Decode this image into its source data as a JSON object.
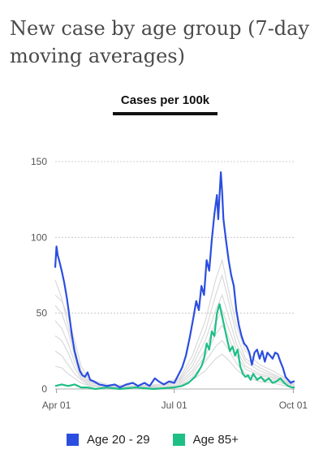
{
  "title": "New case by age group (7-day moving averages)",
  "tab": {
    "label": "Cases per 100k"
  },
  "colors": {
    "age_20_29": "#2b4ee0",
    "age_85_plus": "#1dbf85",
    "background_series": "#d6d6d6",
    "grid": "#bdbdbd"
  },
  "legend": [
    {
      "label": "Age 20 - 29",
      "color": "#2b4ee0"
    },
    {
      "label": "Age 85+",
      "color": "#1dbf85"
    }
  ],
  "chart_data": {
    "type": "line",
    "title": "New case by age group (7-day moving averages)",
    "xlabel": "",
    "ylabel": "Cases per 100k",
    "ylim": [
      0,
      150
    ],
    "yticks": [
      0,
      50,
      100,
      150
    ],
    "xlim": [
      "2020-03-31",
      "2020-10-02"
    ],
    "xticks": [
      {
        "date": "2020-04-01",
        "label": "Apr 01"
      },
      {
        "date": "2020-07-01",
        "label": "Jul 01"
      },
      {
        "date": "2020-10-01",
        "label": "Oct 01"
      }
    ],
    "grid": true,
    "legend_position": "bottom",
    "series": [
      {
        "name": "Age 20 - 29",
        "color": "#2b4ee0",
        "points": [
          [
            "2020-03-31",
            80
          ],
          [
            "2020-04-01",
            94
          ],
          [
            "2020-04-02",
            88
          ],
          [
            "2020-04-03",
            85
          ],
          [
            "2020-04-05",
            78
          ],
          [
            "2020-04-07",
            70
          ],
          [
            "2020-04-09",
            60
          ],
          [
            "2020-04-11",
            48
          ],
          [
            "2020-04-13",
            35
          ],
          [
            "2020-04-15",
            25
          ],
          [
            "2020-04-17",
            18
          ],
          [
            "2020-04-19",
            12
          ],
          [
            "2020-04-21",
            9
          ],
          [
            "2020-04-23",
            8
          ],
          [
            "2020-04-25",
            11
          ],
          [
            "2020-04-27",
            6
          ],
          [
            "2020-04-30",
            5
          ],
          [
            "2020-05-04",
            3
          ],
          [
            "2020-05-10",
            2
          ],
          [
            "2020-05-16",
            3
          ],
          [
            "2020-05-20",
            1
          ],
          [
            "2020-05-25",
            3
          ],
          [
            "2020-05-30",
            4
          ],
          [
            "2020-06-03",
            2
          ],
          [
            "2020-06-08",
            4
          ],
          [
            "2020-06-12",
            2
          ],
          [
            "2020-06-16",
            7
          ],
          [
            "2020-06-19",
            5
          ],
          [
            "2020-06-23",
            3
          ],
          [
            "2020-06-27",
            5
          ],
          [
            "2020-07-01",
            4
          ],
          [
            "2020-07-04",
            9
          ],
          [
            "2020-07-07",
            14
          ],
          [
            "2020-07-10",
            22
          ],
          [
            "2020-07-13",
            34
          ],
          [
            "2020-07-16",
            48
          ],
          [
            "2020-07-18",
            58
          ],
          [
            "2020-07-20",
            52
          ],
          [
            "2020-07-22",
            68
          ],
          [
            "2020-07-24",
            62
          ],
          [
            "2020-07-26",
            85
          ],
          [
            "2020-07-28",
            78
          ],
          [
            "2020-07-30",
            98
          ],
          [
            "2020-08-01",
            115
          ],
          [
            "2020-08-03",
            128
          ],
          [
            "2020-08-04",
            112
          ],
          [
            "2020-08-06",
            143
          ],
          [
            "2020-08-07",
            130
          ],
          [
            "2020-08-08",
            112
          ],
          [
            "2020-08-10",
            98
          ],
          [
            "2020-08-12",
            85
          ],
          [
            "2020-08-14",
            75
          ],
          [
            "2020-08-16",
            68
          ],
          [
            "2020-08-18",
            52
          ],
          [
            "2020-08-20",
            42
          ],
          [
            "2020-08-22",
            35
          ],
          [
            "2020-08-24",
            30
          ],
          [
            "2020-08-26",
            28
          ],
          [
            "2020-08-28",
            24
          ],
          [
            "2020-08-30",
            16
          ],
          [
            "2020-09-01",
            24
          ],
          [
            "2020-09-03",
            26
          ],
          [
            "2020-09-05",
            20
          ],
          [
            "2020-09-07",
            25
          ],
          [
            "2020-09-09",
            18
          ],
          [
            "2020-09-11",
            24
          ],
          [
            "2020-09-13",
            22
          ],
          [
            "2020-09-15",
            20
          ],
          [
            "2020-09-17",
            24
          ],
          [
            "2020-09-19",
            23
          ],
          [
            "2020-09-21",
            18
          ],
          [
            "2020-09-23",
            14
          ],
          [
            "2020-09-25",
            8
          ],
          [
            "2020-09-27",
            6
          ],
          [
            "2020-09-29",
            4
          ],
          [
            "2020-10-01",
            5
          ],
          [
            "2020-10-02",
            5
          ]
        ]
      },
      {
        "name": "Age 85+",
        "color": "#1dbf85",
        "points": [
          [
            "2020-03-31",
            2
          ],
          [
            "2020-04-05",
            3
          ],
          [
            "2020-04-10",
            2
          ],
          [
            "2020-04-15",
            3
          ],
          [
            "2020-04-20",
            1
          ],
          [
            "2020-04-25",
            1
          ],
          [
            "2020-05-01",
            0
          ],
          [
            "2020-05-10",
            1
          ],
          [
            "2020-05-20",
            0
          ],
          [
            "2020-06-01",
            1
          ],
          [
            "2020-06-15",
            0
          ],
          [
            "2020-07-01",
            1
          ],
          [
            "2020-07-07",
            2
          ],
          [
            "2020-07-12",
            4
          ],
          [
            "2020-07-17",
            8
          ],
          [
            "2020-07-20",
            12
          ],
          [
            "2020-07-22",
            15
          ],
          [
            "2020-07-24",
            20
          ],
          [
            "2020-07-26",
            30
          ],
          [
            "2020-07-28",
            26
          ],
          [
            "2020-07-30",
            38
          ],
          [
            "2020-08-01",
            35
          ],
          [
            "2020-08-03",
            50
          ],
          [
            "2020-08-05",
            56
          ],
          [
            "2020-08-07",
            48
          ],
          [
            "2020-08-09",
            40
          ],
          [
            "2020-08-11",
            32
          ],
          [
            "2020-08-13",
            25
          ],
          [
            "2020-08-15",
            28
          ],
          [
            "2020-08-17",
            22
          ],
          [
            "2020-08-19",
            26
          ],
          [
            "2020-08-21",
            15
          ],
          [
            "2020-08-23",
            10
          ],
          [
            "2020-08-25",
            8
          ],
          [
            "2020-08-27",
            9
          ],
          [
            "2020-08-29",
            6
          ],
          [
            "2020-08-31",
            10
          ],
          [
            "2020-09-03",
            6
          ],
          [
            "2020-09-06",
            8
          ],
          [
            "2020-09-09",
            5
          ],
          [
            "2020-09-12",
            7
          ],
          [
            "2020-09-15",
            4
          ],
          [
            "2020-09-18",
            5
          ],
          [
            "2020-09-21",
            7
          ],
          [
            "2020-09-24",
            4
          ],
          [
            "2020-09-27",
            2
          ],
          [
            "2020-09-30",
            1
          ],
          [
            "2020-10-02",
            1
          ]
        ]
      }
    ],
    "background_series": [
      [
        [
          "2020-03-31",
          62
        ],
        [
          "2020-04-05",
          58
        ],
        [
          "2020-04-10",
          48
        ],
        [
          "2020-04-15",
          32
        ],
        [
          "2020-04-20",
          15
        ],
        [
          "2020-04-27",
          6
        ],
        [
          "2020-05-10",
          3
        ],
        [
          "2020-06-01",
          2
        ],
        [
          "2020-06-20",
          3
        ],
        [
          "2020-07-05",
          7
        ],
        [
          "2020-07-15",
          22
        ],
        [
          "2020-07-25",
          45
        ],
        [
          "2020-08-02",
          72
        ],
        [
          "2020-08-07",
          85
        ],
        [
          "2020-08-12",
          65
        ],
        [
          "2020-08-18",
          42
        ],
        [
          "2020-08-25",
          25
        ],
        [
          "2020-09-05",
          16
        ],
        [
          "2020-09-15",
          12
        ],
        [
          "2020-09-25",
          7
        ],
        [
          "2020-10-02",
          4
        ]
      ],
      [
        [
          "2020-03-31",
          72
        ],
        [
          "2020-04-05",
          60
        ],
        [
          "2020-04-10",
          42
        ],
        [
          "2020-04-15",
          26
        ],
        [
          "2020-04-20",
          12
        ],
        [
          "2020-04-27",
          5
        ],
        [
          "2020-05-10",
          2
        ],
        [
          "2020-06-01",
          2
        ],
        [
          "2020-06-20",
          2
        ],
        [
          "2020-07-05",
          6
        ],
        [
          "2020-07-15",
          18
        ],
        [
          "2020-07-25",
          38
        ],
        [
          "2020-08-02",
          62
        ],
        [
          "2020-08-07",
          75
        ],
        [
          "2020-08-12",
          58
        ],
        [
          "2020-08-18",
          36
        ],
        [
          "2020-08-25",
          20
        ],
        [
          "2020-09-05",
          14
        ],
        [
          "2020-09-15",
          10
        ],
        [
          "2020-09-25",
          6
        ],
        [
          "2020-10-02",
          3
        ]
      ],
      [
        [
          "2020-03-31",
          55
        ],
        [
          "2020-04-05",
          50
        ],
        [
          "2020-04-10",
          38
        ],
        [
          "2020-04-15",
          22
        ],
        [
          "2020-04-20",
          10
        ],
        [
          "2020-04-27",
          4
        ],
        [
          "2020-05-10",
          2
        ],
        [
          "2020-06-01",
          1
        ],
        [
          "2020-06-20",
          2
        ],
        [
          "2020-07-05",
          5
        ],
        [
          "2020-07-15",
          15
        ],
        [
          "2020-07-25",
          32
        ],
        [
          "2020-08-02",
          52
        ],
        [
          "2020-08-07",
          62
        ],
        [
          "2020-08-12",
          48
        ],
        [
          "2020-08-18",
          30
        ],
        [
          "2020-08-25",
          18
        ],
        [
          "2020-09-05",
          12
        ],
        [
          "2020-09-15",
          9
        ],
        [
          "2020-09-25",
          5
        ],
        [
          "2020-10-02",
          3
        ]
      ],
      [
        [
          "2020-03-31",
          45
        ],
        [
          "2020-04-05",
          40
        ],
        [
          "2020-04-10",
          30
        ],
        [
          "2020-04-15",
          18
        ],
        [
          "2020-04-20",
          8
        ],
        [
          "2020-04-27",
          4
        ],
        [
          "2020-05-10",
          2
        ],
        [
          "2020-06-01",
          1
        ],
        [
          "2020-06-20",
          2
        ],
        [
          "2020-07-05",
          4
        ],
        [
          "2020-07-15",
          12
        ],
        [
          "2020-07-25",
          26
        ],
        [
          "2020-08-02",
          44
        ],
        [
          "2020-08-07",
          52
        ],
        [
          "2020-08-12",
          40
        ],
        [
          "2020-08-18",
          26
        ],
        [
          "2020-08-25",
          15
        ],
        [
          "2020-09-05",
          10
        ],
        [
          "2020-09-15",
          8
        ],
        [
          "2020-09-25",
          5
        ],
        [
          "2020-10-02",
          2
        ]
      ],
      [
        [
          "2020-03-31",
          35
        ],
        [
          "2020-04-05",
          32
        ],
        [
          "2020-04-10",
          24
        ],
        [
          "2020-04-15",
          14
        ],
        [
          "2020-04-20",
          7
        ],
        [
          "2020-04-27",
          3
        ],
        [
          "2020-05-10",
          1
        ],
        [
          "2020-06-01",
          1
        ],
        [
          "2020-06-20",
          1
        ],
        [
          "2020-07-05",
          3
        ],
        [
          "2020-07-15",
          10
        ],
        [
          "2020-07-25",
          22
        ],
        [
          "2020-08-02",
          36
        ],
        [
          "2020-08-07",
          42
        ],
        [
          "2020-08-12",
          34
        ],
        [
          "2020-08-18",
          22
        ],
        [
          "2020-08-25",
          13
        ],
        [
          "2020-09-05",
          9
        ],
        [
          "2020-09-15",
          7
        ],
        [
          "2020-09-25",
          4
        ],
        [
          "2020-10-02",
          2
        ]
      ],
      [
        [
          "2020-03-31",
          25
        ],
        [
          "2020-04-05",
          22
        ],
        [
          "2020-04-10",
          16
        ],
        [
          "2020-04-15",
          10
        ],
        [
          "2020-04-20",
          6
        ],
        [
          "2020-04-27",
          2
        ],
        [
          "2020-05-10",
          1
        ],
        [
          "2020-06-01",
          1
        ],
        [
          "2020-06-20",
          1
        ],
        [
          "2020-07-05",
          2
        ],
        [
          "2020-07-15",
          8
        ],
        [
          "2020-07-25",
          18
        ],
        [
          "2020-08-02",
          28
        ],
        [
          "2020-08-07",
          32
        ],
        [
          "2020-08-12",
          26
        ],
        [
          "2020-08-18",
          17
        ],
        [
          "2020-08-25",
          10
        ],
        [
          "2020-09-05",
          7
        ],
        [
          "2020-09-15",
          6
        ],
        [
          "2020-09-25",
          3
        ],
        [
          "2020-10-02",
          2
        ]
      ],
      [
        [
          "2020-03-31",
          15
        ],
        [
          "2020-04-05",
          14
        ],
        [
          "2020-04-10",
          10
        ],
        [
          "2020-04-15",
          7
        ],
        [
          "2020-04-20",
          4
        ],
        [
          "2020-04-27",
          2
        ],
        [
          "2020-05-10",
          1
        ],
        [
          "2020-06-01",
          0
        ],
        [
          "2020-06-20",
          1
        ],
        [
          "2020-07-05",
          2
        ],
        [
          "2020-07-15",
          6
        ],
        [
          "2020-07-25",
          12
        ],
        [
          "2020-08-02",
          20
        ],
        [
          "2020-08-07",
          23
        ],
        [
          "2020-08-12",
          19
        ],
        [
          "2020-08-18",
          13
        ],
        [
          "2020-08-25",
          8
        ],
        [
          "2020-09-05",
          5
        ],
        [
          "2020-09-15",
          4
        ],
        [
          "2020-09-25",
          2
        ],
        [
          "2020-10-02",
          1
        ]
      ]
    ]
  }
}
